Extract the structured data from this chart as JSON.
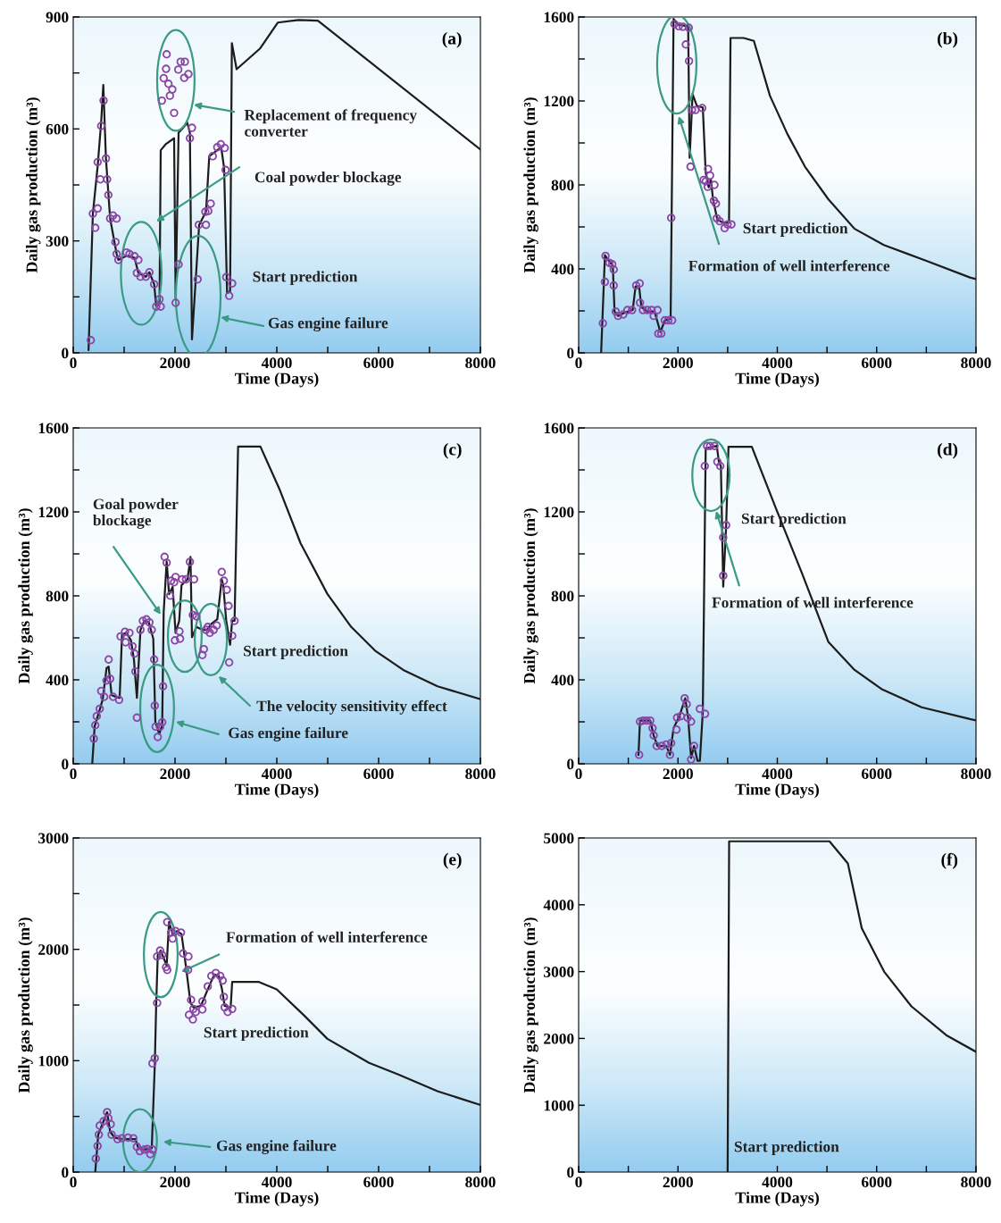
{
  "chart_data": [
    {
      "type": "line",
      "title": "(a)",
      "xlabel": "Time (Days)",
      "ylabel": "Daily gas production (m³)",
      "xlim": [
        0,
        8000
      ],
      "xticks": [
        0,
        {
          "value": 1000,
          "label": null
        },
        2000,
        {
          "value": 3000,
          "label": null
        },
        4000,
        {
          "value": 5000,
          "label": null
        },
        6000,
        {
          "value": 7000,
          "label": null
        },
        8000
      ],
      "ylim": [
        0,
        900
      ],
      "yticks": [
        0,
        {
          "value": 150,
          "label": null
        },
        300,
        {
          "value": 450,
          "label": null
        },
        600,
        {
          "value": 750,
          "label": null
        },
        900
      ],
      "series": [
        {
          "color": "#1c1c1c",
          "marker": "none",
          "line_style": "solid",
          "x": [
            301,
            386,
            480,
            550,
            591,
            643,
            725,
            853,
            888,
            1046,
            1204,
            1280,
            1427,
            1497,
            1590,
            1631,
            1695,
            1719,
            1824,
            1982,
            2012,
            2070,
            2140,
            2240,
            2292,
            2333,
            2474,
            2608,
            2673,
            2907,
            2965,
            3023,
            3082,
            3117,
            3210,
            3667,
            4018,
            4427,
            4807,
            8000
          ],
          "values": [
            8,
            373,
            500,
            620,
            718,
            521,
            360,
            265,
            249,
            260,
            255,
            214,
            204,
            216,
            184,
            124,
            130,
            543,
            560,
            575,
            144,
            590,
            600,
            617,
            590,
            36,
            343,
            378,
            527,
            551,
            495,
            160,
            165,
            830,
            760,
            815,
            885,
            892,
            890,
            545
          ]
        },
        {
          "type": "scatter",
          "color": "#8b45a6",
          "marker": "circle",
          "x": [
            345,
            386,
            433,
            480,
            480,
            533,
            550,
            596,
            643,
            666,
            690,
            725,
            783,
            853,
            830,
            853,
            888,
            1046,
            1105,
            1204,
            1280,
            1251,
            1321,
            1427,
            1497,
            1590,
            1631,
            1695,
            1719,
            1836,
            1824,
            1778,
            1871,
            1947,
            1900,
            1742,
            1982,
            2064,
            2111,
            2193,
            2263,
            2181,
            2333,
            2292,
            2012,
            2070,
            2444,
            2467,
            2608,
            2596,
            2654,
            2701,
            2742,
            2830,
            2900,
            2976,
            2994,
            3006,
            3064,
            3123
          ],
          "values": [
            34,
            373,
            335,
            387,
            511,
            465,
            608,
            676,
            521,
            465,
            423,
            360,
            368,
            360,
            297,
            265,
            249,
            269,
            265,
            259,
            249,
            214,
            204,
            204,
            216,
            184,
            124,
            144,
            124,
            800,
            761,
            736,
            721,
            706,
            689,
            676,
            643,
            759,
            780,
            780,
            747,
            737,
            603,
            575,
            134,
            237,
            197,
            343,
            343,
            378,
            380,
            400,
            527,
            551,
            559,
            549,
            490,
            203,
            153,
            186
          ]
        }
      ],
      "annotations": [
        "Replacement of frequency\nconverter",
        {
          "text": "Coal powder blockage",
          "x": 1632,
          "y": 352
        },
        "Start prediction",
        "Gas engine failure"
      ]
    },
    {
      "type": "line",
      "title": "(b)",
      "xlabel": "Time (Days)",
      "ylabel": "Daily gas production (m³)",
      "xlim": [
        0,
        8000
      ],
      "xticks": [
        0,
        {
          "value": 1000,
          "label": null
        },
        2000,
        {
          "value": 3000,
          "label": null
        },
        4000,
        {
          "value": 5000,
          "label": null
        },
        6000,
        {
          "value": 7000,
          "label": null
        },
        8000
      ],
      "ylim": [
        0,
        1600
      ],
      "yticks": [
        0,
        {
          "value": 200,
          "label": null
        },
        400,
        {
          "value": 600,
          "label": null
        },
        800,
        {
          "value": 1000,
          "label": null
        },
        1200,
        {
          "value": 1400,
          "label": null
        },
        1600
      ],
      "series": [
        {
          "color": "#1c1c1c",
          "marker": "none",
          "line_style": "solid",
          "x": [
            453,
            529,
            617,
            688,
            723,
            794,
            911,
            1088,
            1147,
            1217,
            1264,
            1382,
            1529,
            1646,
            1735,
            1852,
            1911,
            2000,
            2205,
            2235,
            2294,
            2382,
            2500,
            2558,
            2617,
            2664,
            2705,
            2793,
            2911,
            3028,
            3058,
            3322,
            3528,
            3851,
            4204,
            4557,
            5027,
            5556,
            6144,
            7026,
            7879,
            8000
          ],
          "values": [
            0,
            465,
            436,
            415,
            197,
            176,
            190,
            204,
            317,
            317,
            218,
            197,
            197,
            99,
            155,
            162,
            1591,
            1563,
            1556,
            929,
            1232,
            1176,
            1169,
            859,
            789,
            824,
            732,
            634,
            620,
            620,
            1500,
            1500,
            1486,
            1225,
            1042,
            887,
            732,
            591,
            514,
            436,
            359,
            352
          ]
        },
        {
          "type": "scatter",
          "color": "#8b45a6",
          "marker": "circle",
          "x": [
            488,
            529,
            541,
            617,
            676,
            706,
            706,
            747,
            794,
            899,
            982,
            1076,
            1158,
            1229,
            1235,
            1294,
            1382,
            1470,
            1511,
            1588,
            1605,
            1664,
            1735,
            1805,
            1882,
            1864,
            1929,
            2017,
            2099,
            2217,
            2158,
            2223,
            2253,
            2282,
            2352,
            2488,
            2517,
            2605,
            2646,
            2599,
            2558,
            2734,
            2723,
            2764,
            2782,
            2840,
            2940,
            2999,
            3076
          ],
          "values": [
            141,
            338,
            462,
            429,
            422,
            397,
            321,
            197,
            176,
            183,
            204,
            204,
            321,
            331,
            239,
            204,
            204,
            204,
            176,
            204,
            92,
            92,
            155,
            155,
            155,
            643,
            1566,
            1556,
            1553,
            1549,
            1469,
            1390,
            887,
            1157,
            1157,
            1166,
            824,
            876,
            845,
            791,
            817,
            800,
            725,
            711,
            641,
            627,
            594,
            612,
            612
          ]
        }
      ],
      "annotations": [
        "Start prediction",
        "Formation of well interference"
      ]
    },
    {
      "type": "line",
      "title": "(c)",
      "xlabel": "Time (Days)",
      "ylabel": "Daily gas production (m³)",
      "xlim": [
        0,
        8000
      ],
      "xticks": [
        0,
        {
          "value": 1000,
          "label": null
        },
        2000,
        {
          "value": 3000,
          "label": null
        },
        4000,
        {
          "value": 5000,
          "label": null
        },
        6000,
        {
          "value": 7000,
          "label": null
        },
        8000
      ],
      "ylim": [
        0,
        1600
      ],
      "yticks": [
        0,
        {
          "value": 200,
          "label": null
        },
        400,
        {
          "value": 600,
          "label": null
        },
        800,
        {
          "value": 1000,
          "label": null
        },
        1200,
        {
          "value": 1400,
          "label": null
        },
        1600
      ],
      "series": [
        {
          "color": "#1c1c1c",
          "marker": "none",
          "line_style": "solid",
          "x": [
            374,
            421,
            520,
            579,
            655,
            696,
            754,
            842,
            912,
            959,
            1047,
            1134,
            1193,
            1251,
            1321,
            1397,
            1485,
            1573,
            1614,
            1690,
            1748,
            1777,
            1836,
            1883,
            1953,
            2011,
            2082,
            2128,
            2246,
            2304,
            2333,
            2421,
            2538,
            2626,
            2714,
            2831,
            2918,
            2948,
            3006,
            3082,
            3123,
            3170,
            3239,
            3678,
            4058,
            4468,
            4994,
            5462,
            5930,
            6485,
            7158,
            8000
          ],
          "values": [
            0,
            179,
            257,
            307,
            456,
            463,
            328,
            318,
            314,
            617,
            624,
            588,
            496,
            314,
            638,
            681,
            674,
            596,
            198,
            142,
            184,
            722,
            964,
            808,
            843,
            624,
            681,
            851,
            879,
            986,
            603,
            652,
            638,
            638,
            667,
            689,
            879,
            851,
            681,
            567,
            681,
            681,
            1511,
            1511,
            1305,
            1050,
            809,
            652,
            539,
            447,
            369,
            308
          ]
        },
        {
          "type": "scatter",
          "color": "#8b45a6",
          "marker": "circle",
          "x": [
            404,
            433,
            462,
            520,
            550,
            608,
            655,
            696,
            725,
            783,
            901,
            930,
            1018,
            1030,
            1105,
            1164,
            1204,
            1222,
            1251,
            1321,
            1368,
            1438,
            1497,
            1543,
            1590,
            1602,
            1620,
            1661,
            1707,
            1748,
            1765,
            1795,
            1836,
            1906,
            1924,
            1982,
            2011,
            2087,
            2099,
            1999,
            2140,
            2216,
            2292,
            2374,
            2351,
            2421,
            2538,
            2567,
            2608,
            2643,
            2684,
            2760,
            2819,
            2918,
            2959,
            3017,
            3052,
            3123,
            3064,
            3170
          ],
          "values": [
            120,
            184,
            227,
            262,
            347,
            319,
            397,
            497,
            405,
            319,
            305,
            607,
            629,
            579,
            624,
            560,
            525,
            440,
            220,
            638,
            681,
            688,
            674,
            638,
            497,
            277,
            177,
            128,
            177,
            198,
            369,
            986,
            958,
            801,
            872,
            865,
            890,
            631,
            596,
            588,
            879,
            879,
            962,
            879,
            709,
            702,
            518,
            546,
            638,
            652,
            624,
            638,
            659,
            914,
            872,
            829,
            752,
            610,
            483,
            681
          ]
        }
      ],
      "annotations": [
        {
          "text": "Goal powder\nblockage",
          "x": 1719,
          "y": 711
        },
        "Start prediction",
        "The velocity sensitivity effect",
        "Gas engine failure"
      ]
    },
    {
      "type": "line",
      "title": "(d)",
      "xlabel": "Time (Days)",
      "ylabel": "Daily gas production (m³)",
      "xlim": [
        0,
        8000
      ],
      "xticks": [
        0,
        {
          "value": 1000,
          "label": null
        },
        2000,
        {
          "value": 3000,
          "label": null
        },
        4000,
        {
          "value": 5000,
          "label": null
        },
        6000,
        {
          "value": 7000,
          "label": null
        },
        8000
      ],
      "ylim": [
        0,
        1600
      ],
      "yticks": [
        0,
        {
          "value": 200,
          "label": null
        },
        400,
        {
          "value": 600,
          "label": null
        },
        800,
        {
          "value": 1000,
          "label": null
        },
        1200,
        {
          "value": 1400,
          "label": null
        },
        1600
      ],
      "series": [
        {
          "color": "#1c1c1c",
          "marker": "none",
          "line_style": "solid",
          "x": [
            1205,
            1235,
            1441,
            1511,
            1588,
            1764,
            1840,
            1911,
            2029,
            2146,
            2205,
            2264,
            2323,
            2394,
            2441,
            2500,
            2558,
            2782,
            2823,
            2864,
            2911,
            2970,
            3017,
            3487,
            3969,
            4498,
            5027,
            5556,
            6114,
            6908,
            7879,
            8000
          ],
          "values": [
            43,
            206,
            206,
            135,
            85,
            85,
            43,
            170,
            227,
            312,
            220,
            28,
            85,
            14,
            14,
            248,
            1503,
            1514,
            1439,
            1418,
            844,
            1134,
            1510,
            1510,
            1219,
            907,
            581,
            447,
            354,
            269,
            213,
            207
          ]
        },
        {
          "type": "scatter",
          "color": "#8b45a6",
          "marker": "circle",
          "x": [
            1217,
            1235,
            1294,
            1370,
            1441,
            1488,
            1511,
            1570,
            1676,
            1764,
            1840,
            1864,
            1970,
            1982,
            2058,
            2135,
            2176,
            2193,
            2264,
            2264,
            2323,
            2441,
            2546,
            2540,
            2587,
            2646,
            2735,
            2793,
            2852,
            2911,
            2970,
            2911
          ],
          "values": [
            43,
            201,
            206,
            206,
            206,
            170,
            135,
            85,
            85,
            92,
            43,
            99,
            163,
            220,
            227,
            312,
            284,
            220,
            201,
            21,
            85,
            262,
            238,
            1418,
            1514,
            1514,
            1514,
            1439,
            1418,
            1078,
            1137,
            896
          ]
        }
      ],
      "annotations": [
        "Start prediction",
        "Formation of well interference"
      ]
    },
    {
      "type": "line",
      "title": "(e)",
      "xlabel": "Time (Days)",
      "ylabel": "Daily gas production (m³)",
      "xlim": [
        0,
        8000
      ],
      "xticks": [
        0,
        {
          "value": 1000,
          "label": null
        },
        2000,
        {
          "value": 3000,
          "label": null
        },
        4000,
        {
          "value": 5000,
          "label": null
        },
        6000,
        {
          "value": 7000,
          "label": null
        },
        8000
      ],
      "ylim": [
        0,
        3000
      ],
      "yticks": [
        0,
        {
          "value": 500,
          "label": null
        },
        1000,
        {
          "value": 1500,
          "label": null
        },
        2000,
        {
          "value": 2500,
          "label": null
        },
        3000
      ],
      "series": [
        {
          "color": "#1c1c1c",
          "marker": "none",
          "line_style": "solid",
          "x": [
            433,
            491,
            596,
            666,
            725,
            813,
            959,
            1222,
            1280,
            1397,
            1543,
            1602,
            1631,
            1661,
            1719,
            1777,
            1836,
            1883,
            1953,
            2041,
            2128,
            2216,
            2304,
            2362,
            2508,
            2655,
            2772,
            2860,
            2918,
            2976,
            3093,
            3123,
            3649,
            3999,
            4526,
            4994,
            5813,
            6398,
            7158,
            8000
          ],
          "values": [
            0,
            336,
            457,
            538,
            363,
            309,
            296,
            296,
            215,
            202,
            215,
            954,
            1519,
            1949,
            1989,
            1922,
            1855,
            2245,
            2137,
            2164,
            2137,
            1841,
            1519,
            1479,
            1492,
            1653,
            1774,
            1761,
            1653,
            1492,
            1479,
            1707,
            1707,
            1640,
            1411,
            1196,
            981,
            874,
            726,
            602
          ]
        },
        {
          "type": "scatter",
          "color": "#8b45a6",
          "marker": "circle",
          "x": [
            444,
            479,
            503,
            520,
            596,
            666,
            690,
            736,
            754,
            871,
            959,
            1076,
            1181,
            1251,
            1309,
            1397,
            1456,
            1514,
            1556,
            1556,
            1602,
            1649,
            1649,
            1707,
            1748,
            1824,
            1847,
            1847,
            1924,
            1953,
            2011,
            2117,
            2158,
            2263,
            2257,
            2316,
            2362,
            2274,
            2351,
            2409,
            2538,
            2538,
            2643,
            2713,
            2801,
            2889,
            2936,
            2959,
            2976,
            3035,
            3123
          ],
          "values": [
            121,
            234,
            336,
            417,
            457,
            538,
            484,
            430,
            336,
            296,
            304,
            309,
            304,
            228,
            188,
            202,
            207,
            161,
            202,
            976,
            1022,
            1519,
            1936,
            1989,
            1949,
            1841,
            1815,
            2245,
            2151,
            2097,
            2164,
            2151,
            1963,
            1936,
            1815,
            1546,
            1465,
            1412,
            1371,
            1438,
            1532,
            1460,
            1667,
            1761,
            1788,
            1761,
            1720,
            1573,
            1479,
            1438,
            1465
          ]
        }
      ],
      "annotations": [
        {
          "text": "Formation of well interference",
          "x": 2123,
          "y": 1798
        },
        "Start prediction",
        "Gas engine failure"
      ]
    },
    {
      "type": "line",
      "title": "(f)",
      "xlabel": "Time (Days)",
      "ylabel": "Daily gas production (m³)",
      "xlim": [
        0,
        8000
      ],
      "xticks": [
        0,
        {
          "value": 1000,
          "label": null
        },
        2000,
        {
          "value": 3000,
          "label": null
        },
        4000,
        {
          "value": 5000,
          "label": null
        },
        6000,
        {
          "value": 7000,
          "label": null
        },
        8000
      ],
      "ylim": [
        0,
        5000
      ],
      "yticks": [
        0,
        1000,
        2000,
        3000,
        4000,
        5000
      ],
      "series": [
        {
          "color": "#1c1c1c",
          "marker": "none",
          "line_style": "solid",
          "x": [
            3000,
            3030,
            5050,
            5420,
            5700,
            6150,
            6700,
            7400,
            8000
          ],
          "values": [
            0,
            4950,
            4950,
            4620,
            3650,
            3000,
            2480,
            2050,
            1800
          ]
        }
      ],
      "annotations": [
        "Start prediction"
      ]
    }
  ]
}
